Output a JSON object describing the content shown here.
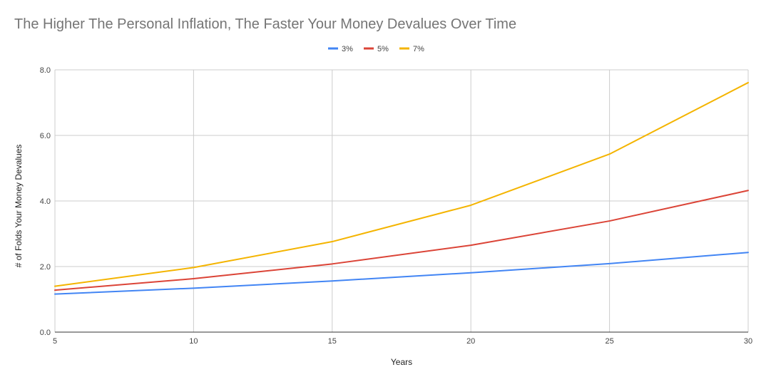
{
  "chart_data": {
    "type": "line",
    "title": "The Higher The Personal Inflation, The Faster Your Money Devalues Over Time",
    "xlabel": "Years",
    "ylabel": "# of Folds Your Money Devalues",
    "x": [
      5,
      10,
      15,
      20,
      25,
      30
    ],
    "xlim": [
      5,
      30
    ],
    "ylim": [
      0,
      8
    ],
    "x_ticks": [
      "5",
      "10",
      "15",
      "20",
      "25",
      "30"
    ],
    "y_ticks": [
      "0.0",
      "2.0",
      "4.0",
      "6.0",
      "8.0"
    ],
    "grid": true,
    "legend_position": "top-center",
    "series": [
      {
        "name": "3%",
        "color": "#4285F4",
        "values": [
          1.16,
          1.34,
          1.56,
          1.81,
          2.09,
          2.43
        ]
      },
      {
        "name": "5%",
        "color": "#DB4437",
        "values": [
          1.28,
          1.63,
          2.08,
          2.65,
          3.39,
          4.32
        ]
      },
      {
        "name": "7%",
        "color": "#F4B400",
        "values": [
          1.4,
          1.97,
          2.76,
          3.87,
          5.43,
          7.61
        ]
      }
    ]
  }
}
